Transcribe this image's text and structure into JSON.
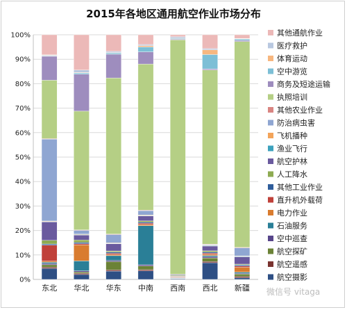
{
  "chart_data": {
    "type": "bar",
    "stacked": true,
    "percent": true,
    "title": "2015年各地区通用航空作业市场分布",
    "categories": [
      "东北",
      "华北",
      "华东",
      "中南",
      "西南",
      "西北",
      "新疆"
    ],
    "ylim": [
      0,
      100
    ],
    "yticks": [
      "0%",
      "10%",
      "20%",
      "30%",
      "40%",
      "50%",
      "60%",
      "70%",
      "80%",
      "90%",
      "100%"
    ],
    "grid": true,
    "legend_position": "right",
    "series": [
      {
        "name": "航空摄影",
        "color": "#2e4f84",
        "values": [
          4.5,
          2.0,
          3.5,
          3.5,
          0.3,
          7.0,
          0.7
        ]
      },
      {
        "name": "航空遥感",
        "color": "#7a3330",
        "values": [
          0.5,
          0.5,
          0.5,
          0.5,
          0.1,
          0.5,
          0.5
        ]
      },
      {
        "name": "航空探矿",
        "color": "#6b8236",
        "values": [
          1.0,
          0.5,
          3.5,
          1.5,
          0.1,
          1.5,
          1.0
        ]
      },
      {
        "name": "空中巡查",
        "color": "#57458a",
        "values": [
          0.5,
          0.5,
          0.5,
          0.5,
          0.1,
          0.5,
          0.3
        ]
      },
      {
        "name": "石油服务",
        "color": "#2a7f97",
        "values": [
          0.5,
          4.0,
          2.0,
          16.0,
          0.2,
          0.5,
          0.5
        ]
      },
      {
        "name": "电力作业",
        "color": "#d97c2f",
        "values": [
          0.5,
          6.5,
          0.5,
          0.5,
          0.2,
          0.5,
          2.0
        ]
      },
      {
        "name": "直升机外载荷",
        "color": "#c0413a",
        "values": [
          6.5,
          0.5,
          0.5,
          0.5,
          0.2,
          0.5,
          0.5
        ]
      },
      {
        "name": "其他工业作业",
        "color": "#2f5d9b",
        "values": [
          0.5,
          0.5,
          0.5,
          0.5,
          0.2,
          0.5,
          0.5
        ]
      },
      {
        "name": "人工降水",
        "color": "#8eab52",
        "values": [
          1.5,
          1.0,
          0.5,
          0.5,
          0.3,
          0.5,
          0.3
        ]
      },
      {
        "name": "航空护林",
        "color": "#6a5a9e",
        "values": [
          7.5,
          2.0,
          3.0,
          2.0,
          0.3,
          2.0,
          3.0
        ]
      },
      {
        "name": "渔业飞行",
        "color": "#3ca2bd",
        "values": [
          0.2,
          0.2,
          0.2,
          0.2,
          0.0,
          0.2,
          0.2
        ]
      },
      {
        "name": "飞机播种",
        "color": "#f3a45a",
        "values": [
          0.2,
          0.2,
          0.2,
          0.2,
          0.0,
          0.2,
          0.2
        ]
      },
      {
        "name": "防治病虫害",
        "color": "#8fa6d2",
        "values": [
          33.5,
          1.5,
          3.5,
          1.8,
          0.1,
          0.2,
          3.3
        ]
      },
      {
        "name": "其他农业作业",
        "color": "#d98582",
        "values": [
          0.2,
          0.2,
          0.2,
          0.2,
          0.0,
          0.2,
          0.2
        ]
      },
      {
        "name": "执照培训",
        "color": "#b5cf85",
        "values": [
          23.9,
          48.2,
          65.8,
          59.9,
          96.2,
          73.0,
          84.8
        ]
      },
      {
        "name": "商务及短途运输",
        "color": "#9e8dbe",
        "values": [
          9.8,
          15.0,
          10.0,
          5.0,
          0.3,
          0.5,
          0.5
        ]
      },
      {
        "name": "空中游览",
        "color": "#7dbfd6",
        "values": [
          0.2,
          0.5,
          0.5,
          2.0,
          0.3,
          6.0,
          0.5
        ]
      },
      {
        "name": "体育运动",
        "color": "#f7b77f",
        "values": [
          0.2,
          0.2,
          0.2,
          0.5,
          0.2,
          2.0,
          0.2
        ]
      },
      {
        "name": "医疗救护",
        "color": "#b9c8e0",
        "values": [
          0.2,
          1.0,
          0.5,
          0.5,
          0.5,
          0.5,
          0.1
        ]
      },
      {
        "name": "其他通航作业",
        "color": "#ecb9b8",
        "values": [
          8.2,
          14.3,
          7.0,
          4.0,
          0.8,
          5.8,
          1.5
        ]
      }
    ]
  },
  "watermark": "微信号 vitaga"
}
